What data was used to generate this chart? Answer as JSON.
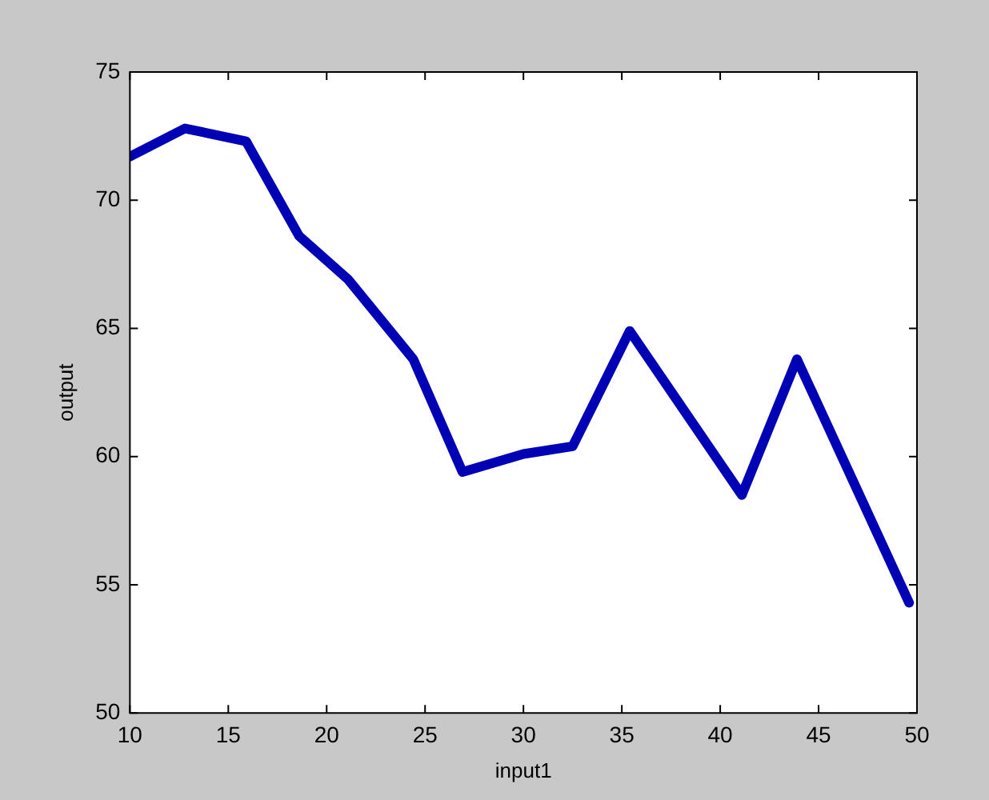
{
  "chart_data": {
    "type": "line",
    "xlabel": "input1",
    "ylabel": "output",
    "series": [
      {
        "color": "#0000b4",
        "x": [
          10,
          12.8,
          15.9,
          18.6,
          21.1,
          24.4,
          26.9,
          30,
          32.5,
          35.4,
          41.1,
          43.9,
          49.6
        ],
        "values": [
          71.7,
          72.8,
          72.3,
          68.6,
          66.9,
          63.8,
          59.4,
          60.1,
          60.4,
          64.9,
          58.5,
          63.8,
          54.3
        ]
      }
    ],
    "xlim": [
      10,
      50
    ],
    "xticks": [
      10,
      15,
      20,
      25,
      30,
      35,
      40,
      45,
      50
    ],
    "ylim": [
      50,
      75
    ],
    "yticks": [
      50,
      55,
      60,
      65,
      70,
      75
    ],
    "grid": false,
    "legend": false,
    "marker": "none",
    "line_style": "solid"
  }
}
